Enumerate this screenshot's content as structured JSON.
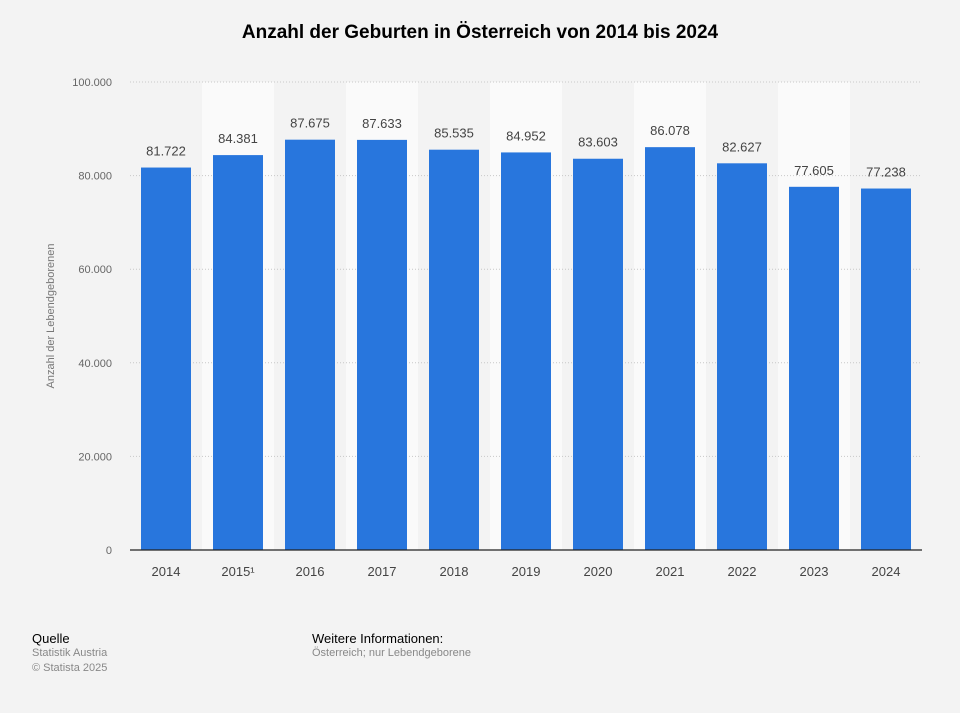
{
  "chart_data": {
    "type": "bar",
    "title": "Anzahl der Geburten in Österreich von 2014 bis 2024",
    "ylabel": "Anzahl der Lebendgeborenen",
    "xlabel": "",
    "categories": [
      "2014",
      "2015¹",
      "2016",
      "2017",
      "2018",
      "2019",
      "2020",
      "2021",
      "2022",
      "2023",
      "2024"
    ],
    "values": [
      81722,
      84381,
      87675,
      87633,
      85535,
      84952,
      83603,
      86078,
      82627,
      77605,
      77238
    ],
    "value_labels": [
      "81.722",
      "84.381",
      "87.675",
      "87.633",
      "85.535",
      "84.952",
      "83.603",
      "86.078",
      "82.627",
      "77.605",
      "77.238"
    ],
    "ylim": [
      0,
      100000
    ],
    "yticks": [
      0,
      20000,
      40000,
      60000,
      80000,
      100000
    ],
    "ytick_labels": [
      "0",
      "20.000",
      "40.000",
      "60.000",
      "80.000",
      "100.000"
    ],
    "grid": true,
    "bar_color": "#2876dd"
  },
  "footer": {
    "source_title": "Quelle",
    "source_name": "Statistik Austria",
    "copyright": "© Statista 2025",
    "info_title": "Weitere Informationen:",
    "info_text": "Österreich; nur Lebendgeborene"
  }
}
